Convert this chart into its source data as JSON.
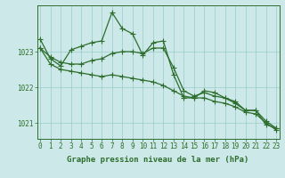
{
  "xlabel": "Graphe pression niveau de la mer (hPa)",
  "background_color": "#cce8e8",
  "grid_color": "#99cccc",
  "line_color": "#2d6e2d",
  "ylim": [
    1020.55,
    1024.3
  ],
  "xlim": [
    -0.3,
    23.3
  ],
  "yticks": [
    1021,
    1022,
    1023
  ],
  "xticks": [
    0,
    1,
    2,
    3,
    4,
    5,
    6,
    7,
    8,
    9,
    10,
    11,
    12,
    13,
    14,
    15,
    16,
    17,
    18,
    19,
    20,
    21,
    22,
    23
  ],
  "line1": [
    1023.35,
    1022.8,
    1022.6,
    1023.05,
    1023.15,
    1023.25,
    1023.3,
    1024.1,
    1023.65,
    1023.5,
    1022.9,
    1023.25,
    1023.3,
    1022.35,
    1021.7,
    1021.7,
    1021.9,
    1021.85,
    1021.7,
    1021.55,
    1021.35,
    1021.35,
    1020.95,
    1020.85
  ],
  "line2": [
    1023.1,
    1022.85,
    1022.7,
    1022.65,
    1022.65,
    1022.75,
    1022.8,
    1022.95,
    1023.0,
    1023.0,
    1022.95,
    1023.1,
    1023.1,
    1022.55,
    1021.9,
    1021.75,
    1021.85,
    1021.75,
    1021.7,
    1021.6,
    1021.35,
    1021.35,
    1021.05,
    1020.85
  ],
  "line3": [
    1023.1,
    1022.65,
    1022.5,
    1022.45,
    1022.4,
    1022.35,
    1022.3,
    1022.35,
    1022.3,
    1022.25,
    1022.2,
    1022.15,
    1022.05,
    1021.9,
    1021.75,
    1021.7,
    1021.7,
    1021.6,
    1021.55,
    1021.45,
    1021.3,
    1021.25,
    1021.0,
    1020.8
  ],
  "marker": "+",
  "marker_size": 4.0,
  "linewidth": 0.9,
  "tick_fontsize": 5.5,
  "label_fontsize": 6.5
}
